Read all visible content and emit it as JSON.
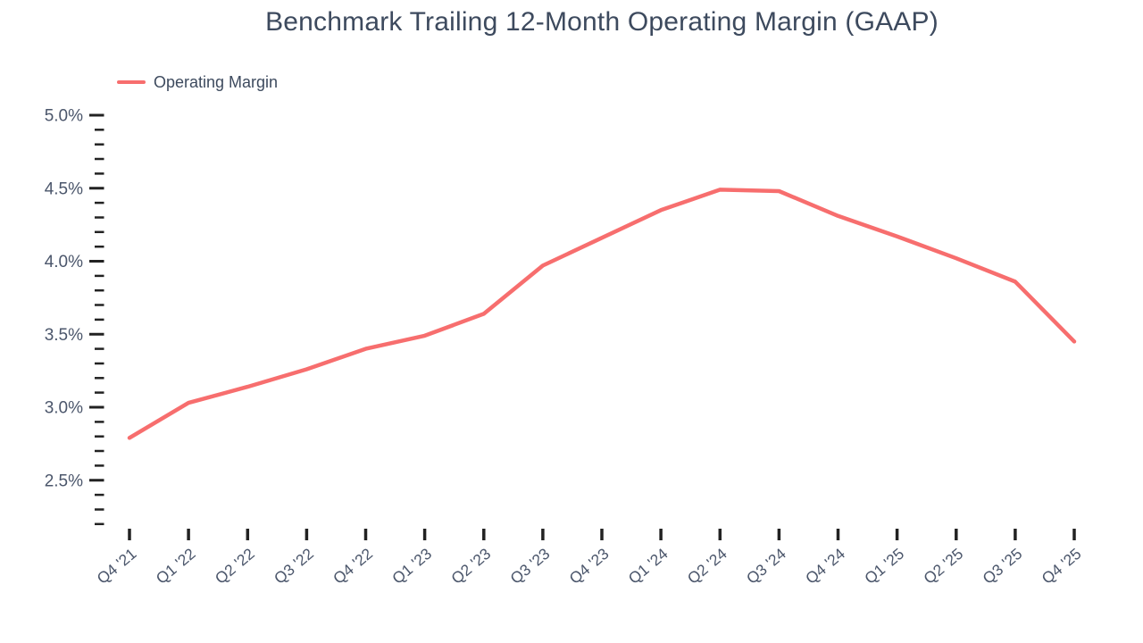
{
  "chart_data": {
    "type": "line",
    "title": "Benchmark Trailing 12-Month Operating Margin (GAAP)",
    "categories": [
      "Q4 '21",
      "Q1 '22",
      "Q2 '22",
      "Q3 '22",
      "Q4 '22",
      "Q1 '23",
      "Q2 '23",
      "Q3 '23",
      "Q4 '23",
      "Q1 '24",
      "Q2 '24",
      "Q3 '24",
      "Q4 '24",
      "Q1 '25",
      "Q2 '25",
      "Q3 '25",
      "Q4 '25"
    ],
    "series": [
      {
        "name": "Operating Margin",
        "color": "#f76e6e",
        "values": [
          2.79,
          3.03,
          3.14,
          3.26,
          3.4,
          3.49,
          3.64,
          3.97,
          4.16,
          4.35,
          4.49,
          4.48,
          4.31,
          4.17,
          4.02,
          3.86,
          3.45
        ]
      }
    ],
    "xlabel": "",
    "ylabel": "",
    "y_axis": {
      "min": 2.2,
      "max": 5.0,
      "major_step": 0.5,
      "minor_step": 0.1,
      "major_tick_values": [
        2.5,
        3.0,
        3.5,
        4.0,
        4.5,
        5.0
      ],
      "tick_label_format": "one_decimal_percent",
      "tick_label_examples": [
        "2.5%",
        "3.0%",
        "3.5%",
        "4.0%",
        "4.5%",
        "5.0%"
      ]
    },
    "x_axis": {
      "tick_per_category": true,
      "label_rotation_deg": -40
    },
    "grid": false,
    "legend_position": "top-left",
    "colors": {
      "line": "#f76e6e",
      "tick": "#222222",
      "axis_label": "#4b566b",
      "title": "#3d4a5e"
    }
  }
}
